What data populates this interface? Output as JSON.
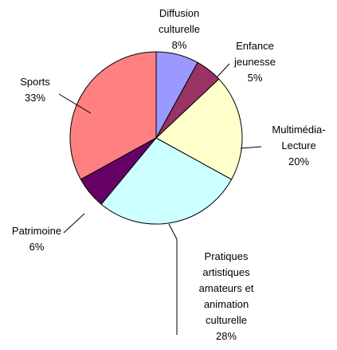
{
  "chart_data": {
    "type": "pie",
    "categories": [
      "Diffusion\nculturelle",
      "Enfance\njeunesse",
      "Multimédia-\nLecture",
      "Pratiques\nartistiques\namateurs et\nanimation\nculturelle",
      "Patrimoine",
      "Sports"
    ],
    "values": [
      8,
      5,
      20,
      28,
      6,
      33
    ],
    "value_labels": [
      "8%",
      "5%",
      "20%",
      "28%",
      "6%",
      "33%"
    ],
    "colors": [
      "#9999ff",
      "#993366",
      "#ffffcc",
      "#ccffff",
      "#660066",
      "#ff8080"
    ]
  }
}
